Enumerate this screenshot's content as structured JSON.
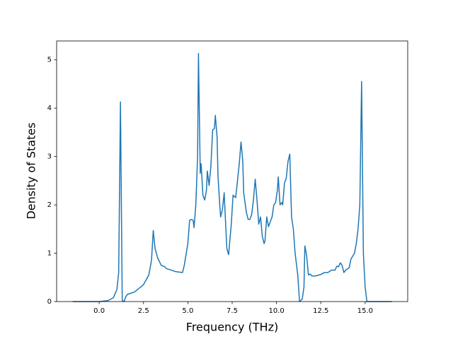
{
  "chart_data": {
    "type": "line",
    "x_label": "Frequency (THz)",
    "y_label": "Density of States",
    "xlim": [
      -2.4,
      17.4
    ],
    "ylim": [
      0,
      5.39
    ],
    "xticks": [
      {
        "value": 0,
        "label": "0.0"
      },
      2.5,
      {
        "value": 5,
        "label": "5.0"
      },
      7.5,
      {
        "value": 10,
        "label": "10.0"
      },
      12.5,
      {
        "value": 15,
        "label": "15.0"
      }
    ],
    "yticks": [
      0,
      1,
      2,
      3,
      4,
      5
    ],
    "grid": false,
    "series": [
      {
        "color": "#1f77b4",
        "x": [
          -1.5,
          0,
          0.5,
          0.8,
          1.0,
          1.1,
          1.2,
          1.3,
          1.4,
          1.5,
          1.6,
          2.0,
          2.5,
          2.8,
          2.95,
          3.05,
          3.15,
          3.3,
          3.5,
          3.7,
          3.8,
          4.0,
          4.3,
          4.7,
          4.8,
          5.0,
          5.1,
          5.2,
          5.3,
          5.35,
          5.45,
          5.55,
          5.6,
          5.7,
          5.75,
          5.85,
          5.95,
          6.05,
          6.1,
          6.2,
          6.3,
          6.4,
          6.5,
          6.55,
          6.65,
          6.7,
          6.8,
          6.85,
          6.95,
          7.05,
          7.1,
          7.2,
          7.3,
          7.45,
          7.55,
          7.7,
          7.8,
          7.9,
          8.0,
          8.1,
          8.15,
          8.3,
          8.4,
          8.5,
          8.6,
          8.7,
          8.8,
          8.9,
          9.0,
          9.1,
          9.2,
          9.3,
          9.35,
          9.45,
          9.55,
          9.65,
          9.75,
          9.85,
          9.95,
          10.05,
          10.1,
          10.2,
          10.3,
          10.35,
          10.45,
          10.55,
          10.65,
          10.75,
          10.85,
          10.95,
          11.05,
          11.2,
          11.3,
          11.45,
          11.55,
          11.6,
          11.7,
          11.8,
          11.9,
          12.0,
          12.2,
          12.5,
          12.7,
          12.9,
          13.1,
          13.3,
          13.4,
          13.5,
          13.6,
          13.7,
          13.8,
          13.9,
          14.1,
          14.2,
          14.4,
          14.5,
          14.6,
          14.7,
          14.8,
          14.9,
          15.0,
          15.1,
          16.5
        ],
        "values": [
          0,
          0,
          0.02,
          0.08,
          0.25,
          0.6,
          4.13,
          0.02,
          0,
          0.1,
          0.15,
          0.2,
          0.35,
          0.55,
          0.85,
          1.47,
          1.1,
          0.9,
          0.75,
          0.72,
          0.68,
          0.66,
          0.62,
          0.6,
          0.75,
          1.2,
          1.68,
          1.7,
          1.68,
          1.53,
          2.0,
          3.0,
          5.13,
          2.65,
          2.85,
          2.2,
          2.1,
          2.3,
          2.7,
          2.4,
          2.8,
          3.55,
          3.58,
          3.85,
          3.4,
          2.6,
          2.0,
          1.75,
          1.9,
          2.25,
          1.85,
          1.1,
          0.97,
          1.6,
          2.2,
          2.15,
          2.5,
          2.85,
          3.3,
          2.9,
          2.25,
          1.85,
          1.7,
          1.7,
          1.8,
          2.1,
          2.53,
          2.1,
          1.6,
          1.75,
          1.35,
          1.2,
          1.25,
          1.75,
          1.55,
          1.65,
          1.75,
          2.0,
          2.05,
          2.3,
          2.58,
          2.0,
          2.05,
          2.0,
          2.45,
          2.55,
          2.9,
          3.05,
          1.75,
          1.5,
          1.0,
          0.55,
          0,
          0.05,
          0.3,
          1.15,
          0.95,
          0.55,
          0.57,
          0.53,
          0.53,
          0.56,
          0.6,
          0.6,
          0.65,
          0.65,
          0.73,
          0.72,
          0.8,
          0.75,
          0.6,
          0.65,
          0.7,
          0.88,
          1.0,
          1.2,
          1.5,
          2.0,
          4.55,
          1.0,
          0.3,
          0,
          0
        ]
      }
    ]
  }
}
